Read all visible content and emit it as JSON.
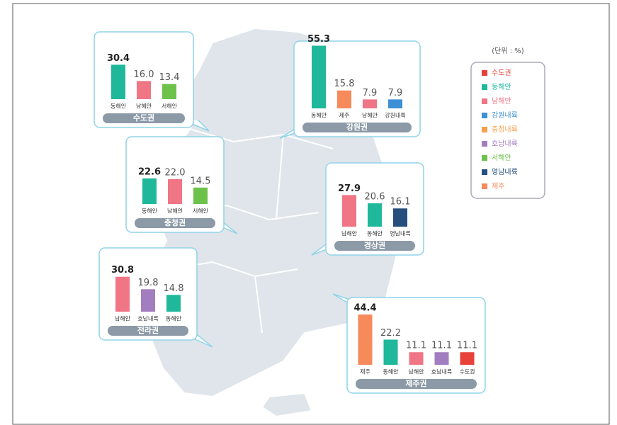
{
  "legend": {
    "title": "(단위 : %)",
    "items": [
      {
        "name": "수도권",
        "color": "#e8413a"
      },
      {
        "name": "동해안",
        "color": "#1fb89b"
      },
      {
        "name": "남해안",
        "color": "#f07585"
      },
      {
        "name": "강원내륙",
        "color": "#3d8fd6"
      },
      {
        "name": "충청내륙",
        "color": "#f7a04b"
      },
      {
        "name": "호남내륙",
        "color": "#a27dc0"
      },
      {
        "name": "서해안",
        "color": "#6cc24a"
      },
      {
        "name": "영남내륙",
        "color": "#264f7e"
      },
      {
        "name": "제주",
        "color": "#f78a5b"
      }
    ]
  },
  "chart_data": [
    {
      "type": "bar",
      "title": "수도권",
      "categories": [
        "동해안",
        "남해안",
        "서해안"
      ],
      "values": [
        30.4,
        16.0,
        13.4
      ],
      "value_labels": [
        "30.4",
        "16.0",
        "13.4"
      ]
    },
    {
      "type": "bar",
      "title": "강원권",
      "categories": [
        "동해안",
        "제주",
        "남해안",
        "강원내륙"
      ],
      "values": [
        55.3,
        15.8,
        7.9,
        7.9
      ],
      "value_labels": [
        "55.3",
        "15.8",
        "7.9",
        "7.9"
      ]
    },
    {
      "type": "bar",
      "title": "충청권",
      "categories": [
        "동해안",
        "남해안",
        "서해안"
      ],
      "values": [
        22.6,
        22.0,
        14.5
      ],
      "value_labels": [
        "22.6",
        "22.0",
        "14.5"
      ]
    },
    {
      "type": "bar",
      "title": "경상권",
      "categories": [
        "남해안",
        "동해안",
        "영남내륙"
      ],
      "values": [
        27.9,
        20.6,
        16.1
      ],
      "value_labels": [
        "27.9",
        "20.6",
        "16.1"
      ]
    },
    {
      "type": "bar",
      "title": "전라권",
      "categories": [
        "남해안",
        "호남내륙",
        "동해안"
      ],
      "values": [
        30.8,
        19.8,
        14.8
      ],
      "value_labels": [
        "30.8",
        "19.8",
        "14.8"
      ]
    },
    {
      "type": "bar",
      "title": "제주권",
      "categories": [
        "제주",
        "동해안",
        "남해안",
        "호남내륙",
        "수도권"
      ],
      "values": [
        44.4,
        22.2,
        11.1,
        11.1,
        11.1
      ],
      "value_labels": [
        "44.4",
        "22.2",
        "11.1",
        "11.1",
        "11.1"
      ]
    }
  ]
}
